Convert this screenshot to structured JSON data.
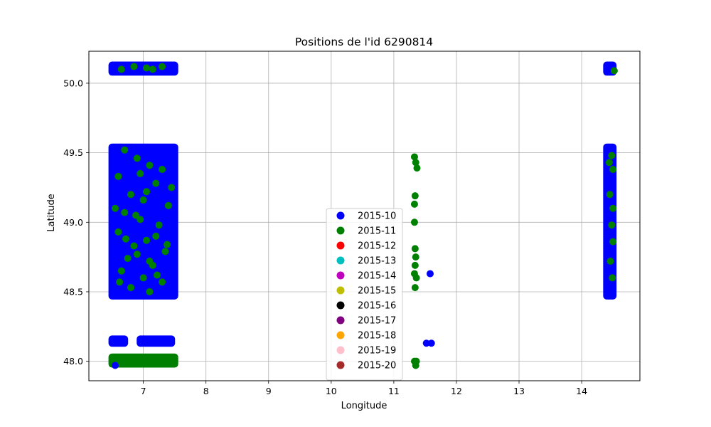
{
  "chart_data": {
    "type": "scatter",
    "title": "Positions de l'id 6290814",
    "xlabel": "Longitude",
    "ylabel": "Latitude",
    "xlim": [
      6.13,
      14.93
    ],
    "ylim": [
      47.86,
      50.23
    ],
    "xticks": [
      7,
      8,
      9,
      10,
      11,
      12,
      13,
      14
    ],
    "yticks": [
      48.0,
      48.5,
      49.0,
      49.5,
      50.0
    ],
    "ytick_labels": [
      "48.0",
      "48.5",
      "49.0",
      "49.5",
      "50.0"
    ],
    "xtick_labels": [
      "7",
      "8",
      "9",
      "10",
      "11",
      "12",
      "13",
      "14"
    ],
    "grid": true,
    "legend_position": "lower center",
    "legend": [
      {
        "label": "2015-10",
        "color": "#0000ff"
      },
      {
        "label": "2015-11",
        "color": "#008000"
      },
      {
        "label": "2015-12",
        "color": "#ff0000"
      },
      {
        "label": "2015-13",
        "color": "#00bfbf"
      },
      {
        "label": "2015-14",
        "color": "#bf00bf"
      },
      {
        "label": "2015-15",
        "color": "#bfbf00"
      },
      {
        "label": "2015-16",
        "color": "#000000"
      },
      {
        "label": "2015-17",
        "color": "#800080"
      },
      {
        "label": "2015-18",
        "color": "#ffa500"
      },
      {
        "label": "2015-19",
        "color": "#ffc0cb"
      },
      {
        "label": "2015-20",
        "color": "#a52a2a"
      }
    ],
    "series": [
      {
        "name": "2015-10",
        "color": "#0000ff",
        "bands": [
          {
            "x": [
              6.5,
              7.5
            ],
            "y": [
              50.08,
              50.13
            ]
          },
          {
            "x": [
              6.5,
              7.5
            ],
            "y": [
              48.47,
              49.54
            ]
          },
          {
            "x": [
              6.5,
              6.7
            ],
            "y": [
              48.13,
              48.16
            ]
          },
          {
            "x": [
              6.95,
              7.45
            ],
            "y": [
              48.13,
              48.16
            ]
          },
          {
            "x": [
              14.4,
              14.5
            ],
            "y": [
              50.08,
              50.13
            ]
          },
          {
            "x": [
              14.4,
              14.5
            ],
            "y": [
              48.47,
              49.54
            ]
          }
        ],
        "points": [
          [
            11.58,
            48.63
          ],
          [
            11.52,
            48.13
          ],
          [
            11.6,
            48.13
          ],
          [
            6.55,
            47.97
          ]
        ]
      },
      {
        "name": "2015-11",
        "color": "#008000",
        "bands": [
          {
            "x": [
              6.5,
              7.5
            ],
            "y": [
              47.98,
              48.03
            ]
          }
        ],
        "points": [
          [
            11.33,
            49.47
          ],
          [
            11.35,
            49.43
          ],
          [
            11.37,
            49.39
          ],
          [
            11.34,
            49.19
          ],
          [
            11.33,
            49.13
          ],
          [
            11.33,
            49.0
          ],
          [
            11.34,
            48.81
          ],
          [
            11.35,
            48.75
          ],
          [
            11.34,
            48.69
          ],
          [
            11.33,
            48.63
          ],
          [
            11.36,
            48.6
          ],
          [
            11.34,
            48.53
          ],
          [
            11.33,
            48.0
          ],
          [
            11.36,
            48.0
          ],
          [
            11.35,
            47.97
          ],
          [
            14.52,
            50.09
          ],
          [
            14.48,
            49.48
          ],
          [
            14.5,
            49.38
          ],
          [
            14.45,
            49.2
          ],
          [
            14.5,
            49.1
          ],
          [
            14.48,
            48.98
          ],
          [
            14.5,
            48.86
          ],
          [
            14.46,
            48.72
          ],
          [
            14.49,
            48.6
          ],
          [
            14.44,
            49.43
          ],
          [
            6.85,
            50.12
          ],
          [
            7.05,
            50.11
          ],
          [
            7.3,
            50.12
          ],
          [
            6.65,
            50.1
          ],
          [
            7.15,
            50.1
          ],
          [
            6.7,
            49.52
          ],
          [
            6.9,
            49.46
          ],
          [
            7.1,
            49.41
          ],
          [
            7.3,
            49.38
          ],
          [
            6.6,
            49.33
          ],
          [
            7.2,
            49.28
          ],
          [
            6.8,
            49.2
          ],
          [
            7.0,
            49.16
          ],
          [
            7.4,
            49.12
          ],
          [
            6.7,
            49.07
          ],
          [
            6.95,
            49.02
          ],
          [
            7.25,
            48.98
          ],
          [
            6.6,
            48.93
          ],
          [
            7.05,
            48.87
          ],
          [
            6.85,
            48.83
          ],
          [
            7.35,
            48.79
          ],
          [
            6.75,
            48.74
          ],
          [
            7.15,
            48.69
          ],
          [
            6.65,
            48.65
          ],
          [
            7.0,
            48.6
          ],
          [
            7.3,
            48.57
          ],
          [
            6.8,
            48.53
          ],
          [
            7.1,
            48.5
          ],
          [
            6.9,
            48.77
          ],
          [
            7.2,
            48.9
          ],
          [
            6.55,
            49.1
          ],
          [
            7.45,
            49.25
          ],
          [
            6.95,
            49.35
          ],
          [
            7.1,
            48.72
          ],
          [
            6.72,
            48.88
          ],
          [
            7.22,
            48.62
          ],
          [
            6.62,
            48.57
          ],
          [
            7.38,
            48.84
          ],
          [
            6.88,
            49.05
          ],
          [
            7.05,
            49.22
          ]
        ]
      }
    ]
  }
}
